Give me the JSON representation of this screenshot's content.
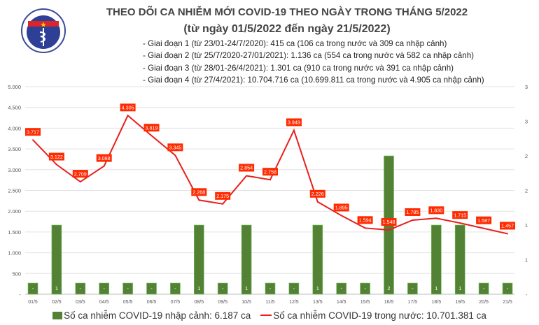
{
  "header": {
    "title": "THEO DÕI CA NHIỄM MỚI COVID-19 THEO NGÀY TRONG THÁNG 5/2022",
    "subtitle": "(từ ngày 01/5/2022 đến ngày 21/5/2022)",
    "notes": [
      "- Giai đoạn 1 (từ 23/01-24/7/2020): 415 ca (106 ca trong nước và 309 ca nhập cảnh)",
      "- Giai đoạn 2 (từ 25/7/2020-27/01/2021): 1.136 ca (554 ca trong nước và 582 ca nhập cảnh)",
      "- Giai đoạn 3 (từ 28/01-26/4/2021): 1.301 ca (910 ca trong nước và 391 ca nhập cảnh)",
      "- Giai đoạn 4 (từ 27/4/2021): 10.704.716 ca (10.699.811 ca trong nước và 4.905 ca nhập cảnh)"
    ],
    "logo_text": "BỘ Y TẾ MINISTRY OF HEALTH"
  },
  "chart_data": {
    "type": "bar+line",
    "categories": [
      "01/5",
      "02/5",
      "03/5",
      "04/5",
      "05/5",
      "06/5",
      "07/5",
      "08/5",
      "09/5",
      "10/5",
      "11/5",
      "12/5",
      "13/5",
      "14/5",
      "15/5",
      "16/5",
      "17/5",
      "18/5",
      "19/5",
      "20/5",
      "21/5"
    ],
    "series": [
      {
        "name": "Số ca nhiễm COVID-19 nhập cảnh: 6.187 ca",
        "type": "bar",
        "axis": "right",
        "color": "#548235",
        "values": [
          0,
          1,
          0,
          0,
          0,
          0,
          0,
          1,
          0,
          1,
          0,
          0,
          1,
          0,
          0,
          2,
          0,
          1,
          1,
          0,
          0
        ]
      },
      {
        "name": "Số ca nhiễm COVID-19 trong nước: 10.701.381 ca",
        "type": "line",
        "axis": "left",
        "color": "#e8201c",
        "values": [
          3717,
          3122,
          2709,
          3088,
          4305,
          3819,
          3345,
          2268,
          2175,
          2854,
          2758,
          3949,
          2226,
          1895,
          1594,
          1548,
          1785,
          1830,
          1715,
          1587,
          1457
        ]
      }
    ],
    "line_labels": [
      "3.717",
      "3.122",
      "2.709",
      "3.088",
      "4.305",
      "3.819",
      "3.345",
      "2.268",
      "2.175",
      "2.854",
      "2.758",
      "3.949",
      "2.226",
      "1.895",
      "1.594",
      "1.548",
      "1.785",
      "1.830",
      "1.715",
      "1.587",
      "1.457"
    ],
    "bar_labels": [
      "-",
      "1",
      "-",
      "-",
      "-",
      "-",
      "-",
      "1",
      "-",
      "1",
      "-",
      "-",
      "1",
      "-",
      "-",
      "2",
      "-",
      "1",
      "1",
      "-",
      "-"
    ],
    "y_left": {
      "range": [
        0,
        5000
      ],
      "ticks": [
        "-",
        "500",
        "1.000",
        "1.500",
        "2.000",
        "2.500",
        "3.000",
        "3.500",
        "4.000",
        "4.500",
        "5.000"
      ]
    },
    "y_right": {
      "range": [
        0,
        3
      ],
      "ticks": [
        "-",
        "1",
        "1",
        "2",
        "2",
        "3",
        "3"
      ]
    },
    "grid": true,
    "legend": "bottom"
  }
}
